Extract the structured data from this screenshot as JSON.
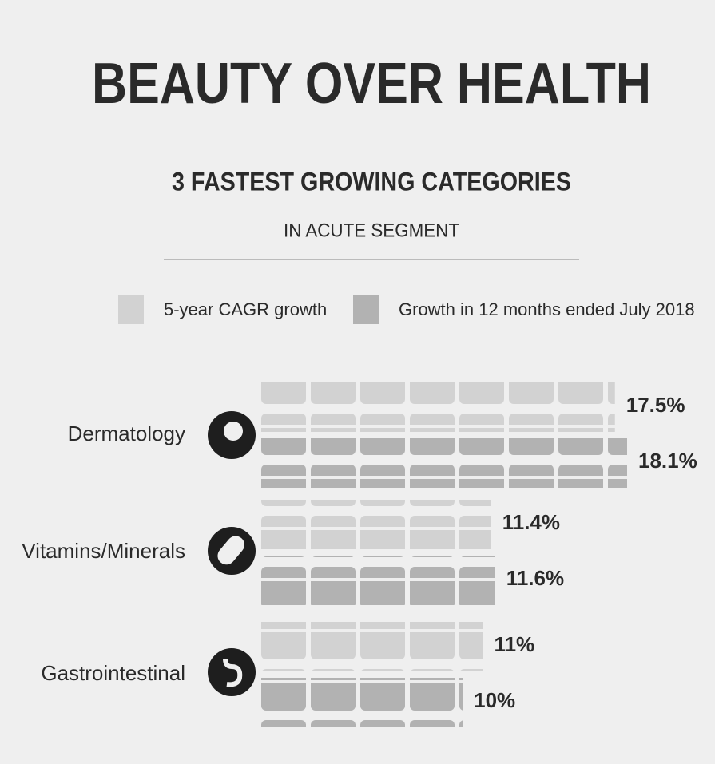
{
  "chart_data": {
    "type": "bar",
    "orientation": "horizontal",
    "title": "BEAUTY OVER HEALTH",
    "subtitle": "3 FASTEST GROWING CATEGORIES",
    "subtitle_2": "IN ACUTE SEGMENT",
    "categories": [
      "Dermatology",
      "Vitamins/Minerals",
      "Gastrointestinal"
    ],
    "series": [
      {
        "name": "5-year CAGR growth",
        "color": "#d2d2d2",
        "values": [
          17.5,
          11.4,
          11
        ],
        "value_labels": [
          "17.5%",
          "11.4%",
          "11%"
        ]
      },
      {
        "name": "Growth in 12 months ended July 2018",
        "color": "#b2b2b2",
        "values": [
          18.1,
          11.6,
          10
        ],
        "value_labels": [
          "18.1%",
          "11.6%",
          "10%"
        ]
      }
    ]
  }
}
